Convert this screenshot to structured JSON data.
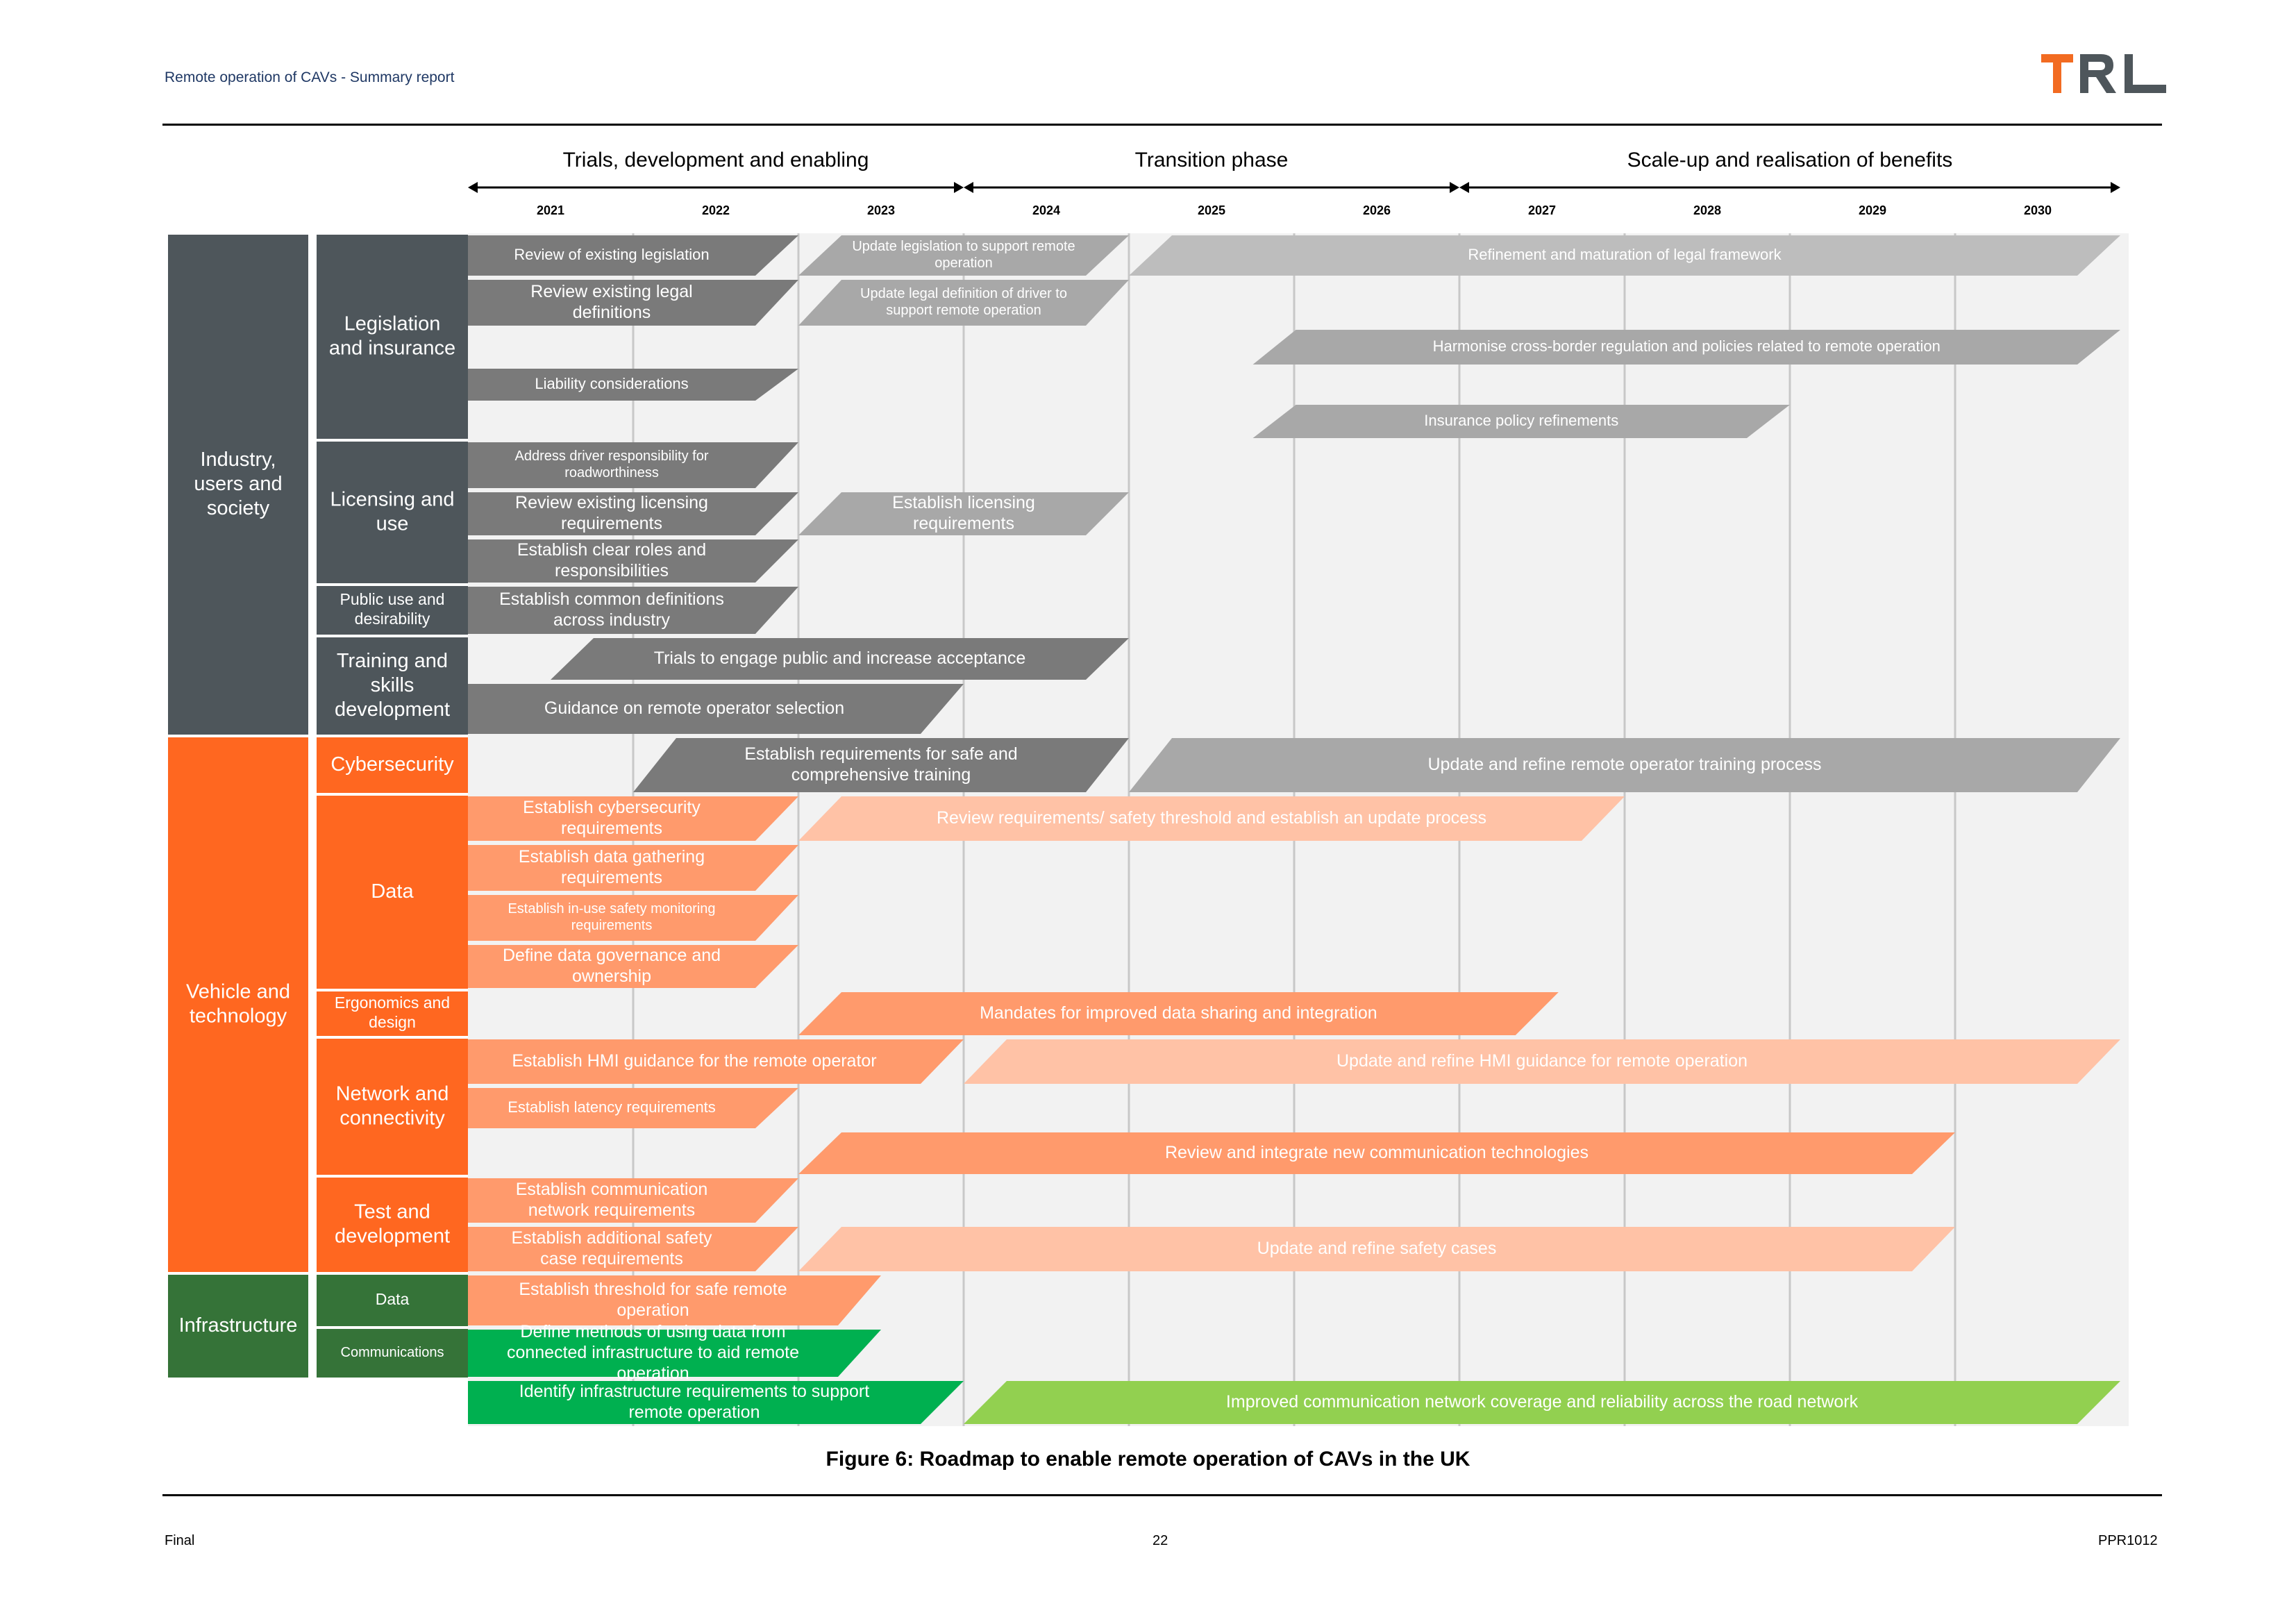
{
  "header": {
    "title": "Remote operation of CAVs - Summary report",
    "logo_text": "TRL"
  },
  "phases": [
    {
      "label": "Trials, development and enabling",
      "start": 2021,
      "end": 2024
    },
    {
      "label": "Transition phase",
      "start": 2024,
      "end": 2027
    },
    {
      "label": "Scale-up and realisation of benefits",
      "start": 2027,
      "end": 2031
    }
  ],
  "years": [
    "2021",
    "2022",
    "2023",
    "2024",
    "2025",
    "2026",
    "2027",
    "2028",
    "2029",
    "2030"
  ],
  "categories": [
    {
      "label": "Industry, users and society",
      "color": "#4e565b",
      "subs": [
        {
          "label": "Legislation and insurance",
          "rows": 5
        },
        {
          "label": "Licensing and use",
          "rows": 3
        },
        {
          "label": "Public use and desirability",
          "rows": 1
        },
        {
          "label": "Training and skills development",
          "rows": 2
        }
      ]
    },
    {
      "label": "Vehicle and technology",
      "color": "#ff6720",
      "subs": [
        {
          "label": "Cybersecurity",
          "rows": 1
        },
        {
          "label": "Data",
          "rows": 4
        },
        {
          "label": "Ergonomics and design",
          "rows": 1
        },
        {
          "label": "Network and connectivity",
          "rows": 3
        },
        {
          "label": "Test and development",
          "rows": 2
        }
      ]
    },
    {
      "label": "Infrastructure",
      "color": "#357338",
      "subs": [
        {
          "label": "Data",
          "rows": 1
        },
        {
          "label": "Communications",
          "rows": 1
        }
      ]
    }
  ],
  "activities": [
    {
      "text": "Review of existing legislation",
      "row": 0,
      "start": 2021,
      "end": 2023,
      "color": "#7a7a7a"
    },
    {
      "text": "Update legislation to support remote operation",
      "row": 0,
      "start": 2023,
      "end": 2025,
      "color": "#a8a8a8"
    },
    {
      "text": "Refinement and maturation of legal framework",
      "row": 0,
      "start": 2025,
      "end": 2031,
      "color": "#bdbdbd"
    },
    {
      "text": "Review existing legal definitions",
      "row": 1,
      "start": 2021,
      "end": 2023,
      "color": "#7a7a7a"
    },
    {
      "text": "Update legal definition of driver to support remote operation",
      "row": 1,
      "start": 2023,
      "end": 2025,
      "color": "#a8a8a8"
    },
    {
      "text": "Harmonise cross-border regulation and policies related to remote operation",
      "row": 2,
      "start": 2025.75,
      "end": 2031,
      "color": "#a8a8a8"
    },
    {
      "text": "Liability considerations",
      "row": 3,
      "start": 2021,
      "end": 2023,
      "color": "#7a7a7a"
    },
    {
      "text": "Insurance policy refinements",
      "row": 4,
      "start": 2025.75,
      "end": 2029,
      "color": "#a8a8a8"
    },
    {
      "text": "Address driver responsibility for roadworthiness",
      "row": 5,
      "start": 2021,
      "end": 2023,
      "color": "#7a7a7a"
    },
    {
      "text": "Review existing licensing requirements",
      "row": 6,
      "start": 2021,
      "end": 2023,
      "color": "#7a7a7a"
    },
    {
      "text": "Establish licensing requirements",
      "row": 6,
      "start": 2023,
      "end": 2025,
      "color": "#a8a8a8"
    },
    {
      "text": "Establish clear roles and responsibilities",
      "row": 7,
      "start": 2021,
      "end": 2023,
      "color": "#7a7a7a"
    },
    {
      "text": "Establish common definitions across industry",
      "row": 8,
      "start": 2021,
      "end": 2023,
      "color": "#7a7a7a"
    },
    {
      "text": "Trials to engage public and increase acceptance",
      "row": 9,
      "start": 2021.5,
      "end": 2025,
      "color": "#7a7a7a"
    },
    {
      "text": "Guidance on remote operator selection",
      "row": 10,
      "start": 2021,
      "end": 2024,
      "color": "#7a7a7a"
    },
    {
      "text": "Establish requirements for safe and comprehensive training",
      "row": 11,
      "start": 2022,
      "end": 2025,
      "color": "#7a7a7a"
    },
    {
      "text": "Update and refine remote operator training process",
      "row": 11,
      "start": 2025,
      "end": 2031,
      "color": "#a8a8a8"
    },
    {
      "text": "Establish cybersecurity requirements",
      "row": 12,
      "start": 2021,
      "end": 2023,
      "color": "#ff9a6c"
    },
    {
      "text": "Review requirements/ safety threshold and establish an update process",
      "row": 12,
      "start": 2023,
      "end": 2028,
      "color": "#ffc2a6"
    },
    {
      "text": "Establish data gathering requirements",
      "row": 13,
      "start": 2021,
      "end": 2023,
      "color": "#ff9a6c"
    },
    {
      "text": "Establish in-use safety monitoring requirements",
      "row": 14,
      "start": 2021,
      "end": 2023,
      "color": "#ff9a6c"
    },
    {
      "text": "Define data governance and ownership",
      "row": 15,
      "start": 2021,
      "end": 2023,
      "color": "#ff9a6c"
    },
    {
      "text": "Mandates for improved data sharing and integration",
      "row": 16,
      "start": 2023,
      "end": 2027.6,
      "color": "#ff9a6c"
    },
    {
      "text": "Establish HMI guidance for the remote operator",
      "row": 17,
      "start": 2021,
      "end": 2024,
      "color": "#ff9a6c"
    },
    {
      "text": "Update and refine HMI guidance for remote operation",
      "row": 17,
      "start": 2024,
      "end": 2031,
      "color": "#ffc2a6"
    },
    {
      "text": "Establish latency requirements",
      "row": 18,
      "start": 2021,
      "end": 2023,
      "color": "#ff9a6c"
    },
    {
      "text": "Review and integrate new communication technologies",
      "row": 19,
      "start": 2023,
      "end": 2030,
      "color": "#ff9a6c"
    },
    {
      "text": "Establish communication network requirements",
      "row": 20,
      "start": 2021,
      "end": 2023,
      "color": "#ff9a6c"
    },
    {
      "text": "Establish additional safety case requirements",
      "row": 21,
      "start": 2021,
      "end": 2023,
      "color": "#ff9a6c"
    },
    {
      "text": "Update and refine safety cases",
      "row": 21,
      "start": 2023,
      "end": 2030,
      "color": "#ffc2a6"
    },
    {
      "text": "Establish threshold for safe remote operation",
      "row": 22,
      "start": 2021,
      "end": 2023.5,
      "color": "#ff9a6c"
    },
    {
      "text": "Define methods of using data from connected infrastructure to aid remote operation",
      "row": 23,
      "start": 2021,
      "end": 2023.5,
      "color": "#00b050"
    },
    {
      "text": "Identify infrastructure requirements to support remote operation",
      "row": 24,
      "start": 2021,
      "end": 2024,
      "color": "#00b050"
    },
    {
      "text": "Improved communication network coverage and reliability across the road network",
      "row": 24,
      "start": 2024,
      "end": 2031,
      "color": "#92d050"
    }
  ],
  "caption": "Figure 6: Roadmap to enable remote operation of CAVs in the UK",
  "footer": {
    "left": "Final",
    "center": "22",
    "right": "PPR1012"
  }
}
